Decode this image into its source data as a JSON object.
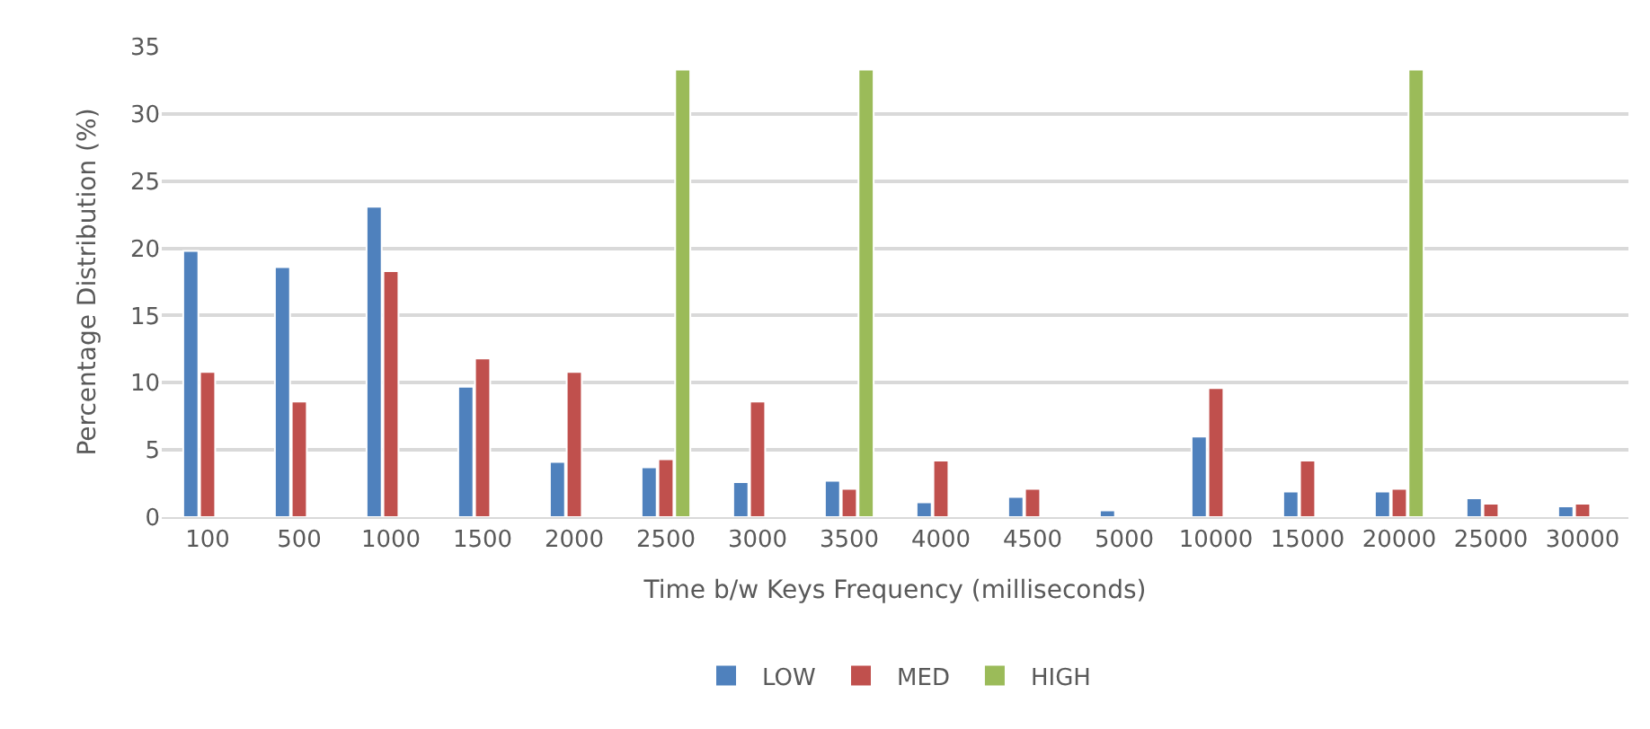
{
  "chart_data": {
    "type": "bar",
    "xlabel": "Time b/w Keys Frequency (milliseconds)",
    "ylabel": "Percentage Distribution (%)",
    "categories": [
      "100",
      "500",
      "1000",
      "1500",
      "2000",
      "2500",
      "3000",
      "3500",
      "4000",
      "4500",
      "5000",
      "10000",
      "15000",
      "20000",
      "25000",
      "30000"
    ],
    "series": [
      {
        "name": "LOW",
        "color": "#4f81bd",
        "values": [
          19.8,
          18.6,
          23.1,
          9.7,
          4.1,
          3.7,
          2.6,
          2.7,
          1.1,
          1.5,
          0.5,
          6.0,
          1.9,
          1.9,
          1.4,
          0.8
        ]
      },
      {
        "name": "MED",
        "color": "#c0504d",
        "values": [
          10.8,
          8.6,
          18.3,
          11.8,
          10.8,
          4.3,
          8.6,
          2.1,
          4.2,
          2.1,
          null,
          9.6,
          4.2,
          2.1,
          1.0,
          1.0
        ]
      },
      {
        "name": "HIGH",
        "color": "#9bbb59",
        "values": [
          null,
          null,
          null,
          null,
          null,
          33.3,
          null,
          33.3,
          null,
          null,
          null,
          null,
          null,
          33.3,
          null,
          null
        ]
      }
    ],
    "ylim": [
      0,
      35
    ],
    "yticks": [
      0,
      5,
      10,
      15,
      20,
      25,
      30,
      35
    ],
    "grid": "y",
    "legend": "bottom"
  }
}
